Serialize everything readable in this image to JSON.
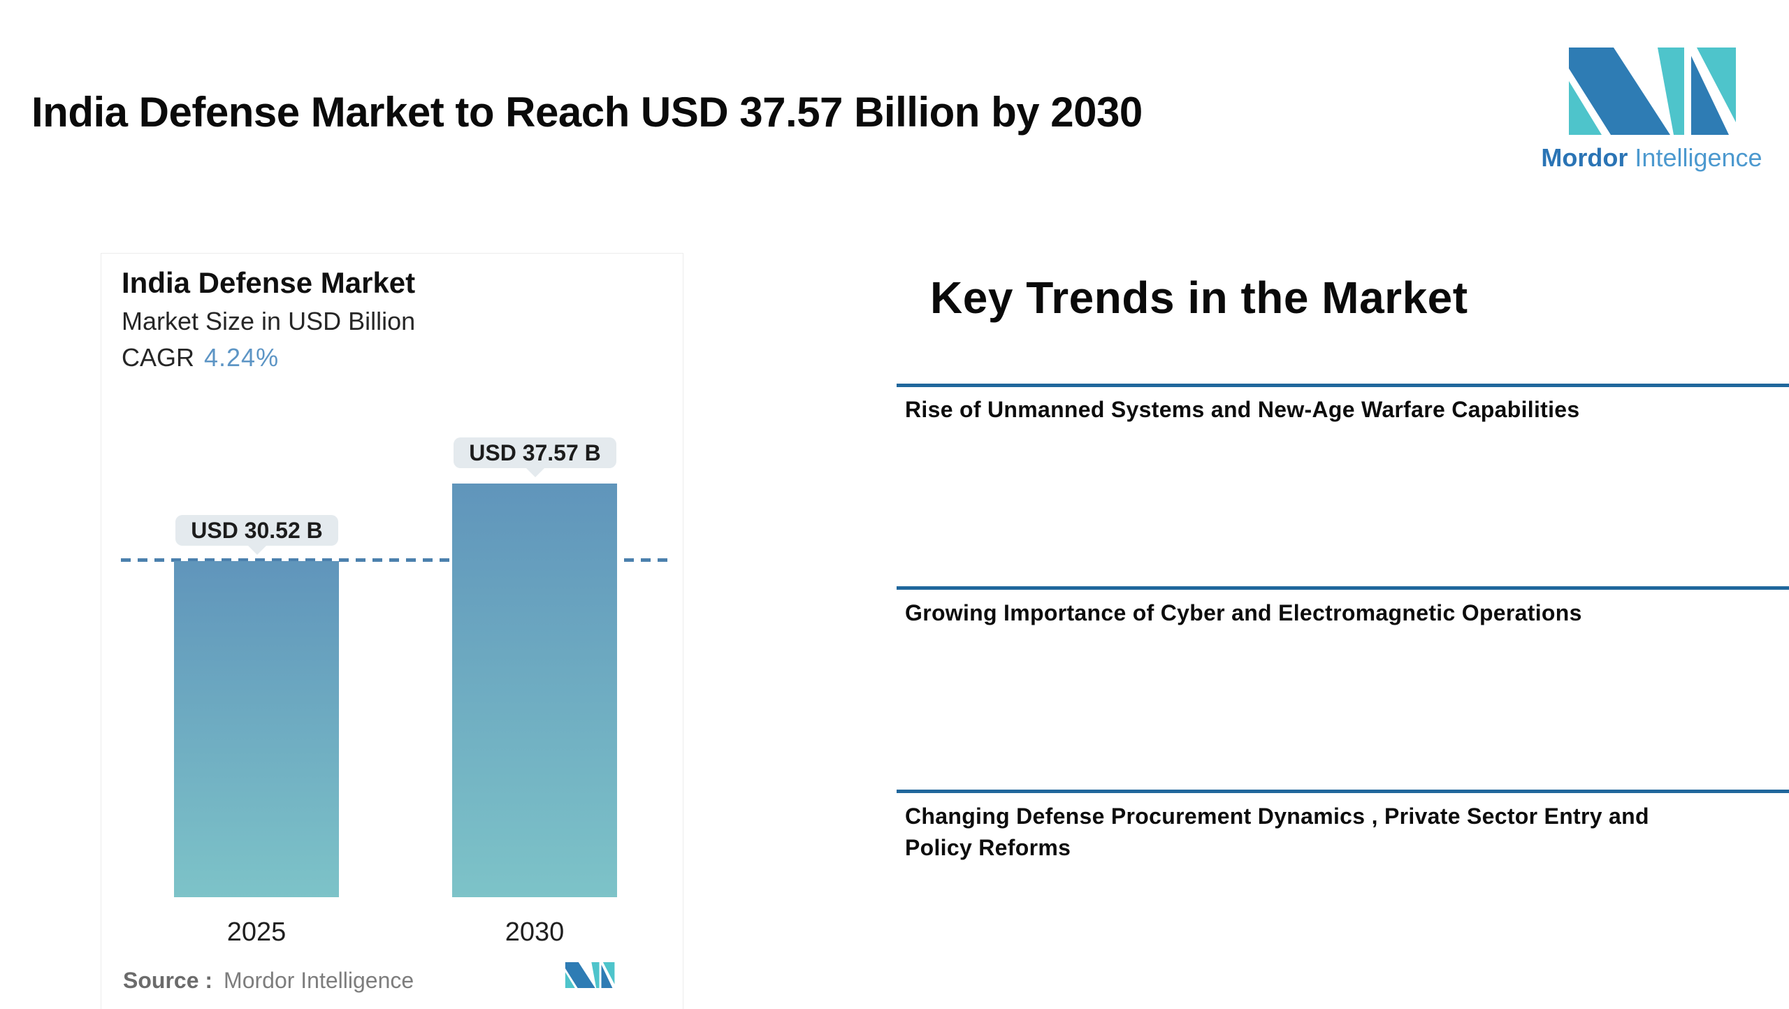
{
  "page": {
    "title": "India Defense Market to Reach USD 37.57 Billion by 2030"
  },
  "brand": {
    "name_bold": "Mordor",
    "name_light": "Intelligence",
    "mark_blue": "#2e7cb4",
    "mark_teal": "#4ec4cb",
    "text_blue_bold": "#2a74b5",
    "text_blue_light": "#4c99cf"
  },
  "chart_card": {
    "title": "India Defense Market",
    "subtitle": "Market Size in USD Billion",
    "cagr_label": "CAGR",
    "cagr_value": "4.24%",
    "source_label": "Source :",
    "source_value": "Mordor Intelligence"
  },
  "chart_data": {
    "type": "bar",
    "title": "India Defense Market",
    "subtitle": "Market Size in USD Billion",
    "cagr_percent": 4.24,
    "categories": [
      "2025",
      "2030"
    ],
    "values": [
      30.52,
      37.57
    ],
    "value_labels": [
      "USD 30.52 B",
      "USD 37.57 B"
    ],
    "ylim": [
      0,
      37.57
    ],
    "grid": false,
    "legend": false,
    "bar_gradient_top": "#6095bb",
    "bar_gradient_bottom": "#7dc3c8",
    "reference_line": {
      "value": 30.52,
      "style": "dashed",
      "color": "#4b80ad"
    },
    "value_label_bubble_color": "#e4eaee"
  },
  "trends": {
    "heading": "Key Trends in the Market",
    "rule_color": "#20679c",
    "items": [
      {
        "lines": [
          "Rise of Unmanned Systems and New-Age Warfare Capabilities"
        ]
      },
      {
        "lines": [
          "Growing Importance of Cyber and Electromagnetic Operations"
        ]
      },
      {
        "lines": [
          "Changing Defense Procurement Dynamics , Private Sector Entry and",
          "Policy Reforms"
        ]
      }
    ]
  }
}
